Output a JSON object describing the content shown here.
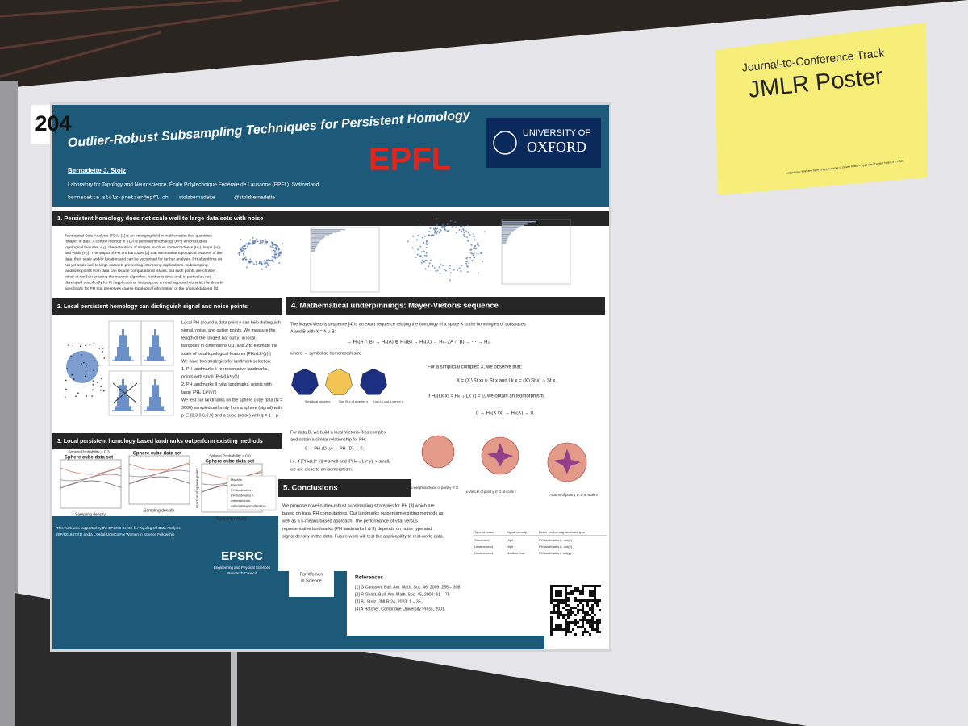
{
  "board_number": "204",
  "sign": {
    "track": "Journal-to-Conference Track",
    "title": "JMLR Poster",
    "note": "Instructions: Fold and tape to upper corner of poster board – opposite of poster board #'s > 500"
  },
  "poster": {
    "title": "Outlier-Robust Subsampling Techniques for Persistent Homology",
    "author": "Bernadette J. Stolz",
    "affiliation": "Laboratory for Topology and Neuroscience, École Polytechnique Fédérale de Lausanne (EPFL), Switzerland.",
    "email": "bernadette.stolz-pretzer@epfl.ch",
    "github": "stolzbernadette",
    "twitter": "@stolzbernadette",
    "logos": [
      "EPFL",
      "UNIVERSITY OF",
      "OXFORD"
    ],
    "sections": [
      {
        "heading": "1. Persistent homology does not scale well to large data sets with noise",
        "blocks": [
          [
            "Topological Data Analysis (TDA) [1] is an emerging field in mathematics that quantifies",
            "“shape” in data. A central method in TDA is persistent homology (PH) which studies",
            "topological features, e.g. characteristics of shapes, such as connectedness (H₀), loops (H₁),",
            "and voids (H₂). The output of PH are barcodes [2] that summarise topological features of the",
            "data, their scale and/or location and can be vectorised for further analysis. PH algorithms do",
            "not yet scale well to large datasets preventing interesting applications. Subsampling",
            "landmark points from data can reduce computational issues, but such points are chosen",
            "either at random or using the maxmin algorithm. Neither is ideal and, in particular, not",
            "developed specifically for PH applications. We propose a novel approach to select landmarks",
            "specifically for PH that preserves coarse topological information of the original data set [3]."
          ]
        ]
      },
      {
        "heading": "2. Local persistent homology can distinguish signal and noise points",
        "blocks": [
          [
            "Local PH around a data point y can help distinguish",
            "signal, noise, and outlier points. We measure the",
            "length of the longest bar out(y) in local",
            "barcodes in dimensions 0,1, and 2 to estimate the",
            "scale of local topological features |PHₖ(Lkᵋ(y))|",
            "We have two strategies for landmark selection:",
            "1. PH landmarks I: representative landmarks,",
            "points with small |PHₖ(Lkᵋ(y))|",
            "2. PH landmarks II: vital landmarks, points with",
            "large |PHₖ(Lkᵋ(y))|",
            "We test our landmarks on the sphere cube data (N =",
            "3000) sampled uniformly from a sphere (signal) with",
            "p ∈ {0.3,0.6,0.9} and a cube (noise) with q = 1 − p."
          ]
        ]
      },
      {
        "heading": "3. Local persistent homology based landmarks outperform existing methods",
        "blocks": [
          [
            "Sphere Probability = 0.3",
            "Sphere Probability = 0.6",
            "Sphere Probability = 0.9"
          ],
          [
            "Sphere cube data set",
            "Sphere cube data set",
            "Sphere cube data set"
          ],
          [
            "Sampling density",
            "Sampling density",
            "Sampling density"
          ],
          [
            "Fraction of sphere points"
          ],
          [
            "MaxMin",
            "Random",
            "PH landmarks I",
            "PH landmarks II",
            "witnessMinus",
            "witnessMinusOutlierFree"
          ]
        ]
      },
      {
        "heading": "4. Mathematical underpinnings: Mayer-Vietoris sequence",
        "blocks": [
          [
            "The Mayer-Vietoris sequence [4] is an exact sequence relating the homology of a space X to the homologies of subspaces",
            "A and B with X = A ∪ B:"
          ],
          [
            "→ Hₙ(A ∩ B) → Hₙ(A) ⊕ Hₙ(B) → Hₙ(X) → Hₙ₋₁(A ∩ B) → ⋯ → H₀,"
          ],
          [
            "where → symbolise homomorphisms"
          ],
          [
            "For a simplicial complex X, we observe that:",
            "X = (X∖St x) ∪ St x and Lk x = (X∖St x) ∩ St x.",
            "If Hₙ(Lk x) = Hₙ₋₁(Lk x) = 0, we obtain an isomorphism:",
            "0 → Hₙ(X∖x) → Hₙ(X) → 0."
          ],
          [
            "Simplicial complex",
            "Star St x of a vertex x",
            "Link Lk x of a vertex x"
          ],
          [
            "For data D, we build a local Vietoris-Rips complex",
            "and obtain a similar relationship for PH:",
            "0 → PHₙ(D∖y) → PHₙ(D) → 0.",
            "i.e. if |PHₙ(Lkᵋ y)| = small and |PHₙ₋₁(Lkᵋ y)| ≈ small,",
            "we are close to an isomorphism."
          ],
          [
            "ε-neighbourhood of point y ∈ D",
            "ε-Vie Lkᵋ of point y ∈ D at scale ε",
            "ε-star St of point y ∈ D at scale ε"
          ]
        ]
      },
      {
        "heading": "5. Conclusions",
        "blocks": [
          [
            "We propose novel outlier-robust subsampling strategies for PH [3] which are",
            "based on local PH computations. Our landmarks outperform existing methods as",
            "well as a k-means based approach. The performance of vital versus",
            "representative landmarks (PH landmarks I & II) depends on noise type and",
            "signal density in the data. Future work will test the applicability to real-world data."
          ]
        ]
      }
    ],
    "table": {
      "header": [
        "Type of noise",
        "Signal density",
        "Better performing landmark type"
      ],
      "rows": [
        [
          "Structured",
          "High",
          "PH landmarks II, out(y)"
        ],
        [
          "Unstructured",
          "High",
          "PH landmarks II, out(y)"
        ],
        [
          "Unstructured",
          "Medium, low",
          "PH landmarks I, out(y)"
        ]
      ]
    },
    "funding": [
      "This work was supported by the EPSRC Centre for Topological Data Analysis",
      "(EP/R018472/1) and a L'Oréal-Unesco For Women in Science Fellowship"
    ],
    "footer_logos": [
      "EPSRC",
      "Engineering and Physical Sciences",
      "Research Council",
      "For Women",
      "in Science"
    ],
    "references_title": "References",
    "references": [
      "[1] G Carlsson, Bull. Am. Math. Soc. 46, 2009: 255 – 308",
      "[2] R Ghrist, Bull. Am. Math. Soc. 45, 2008: 61 – 75",
      "[3] BJ Stolz, JMLR 24, 2023: 1 – 35",
      "[4] A Hatcher, Cambridge University Press, 2001."
    ]
  }
}
